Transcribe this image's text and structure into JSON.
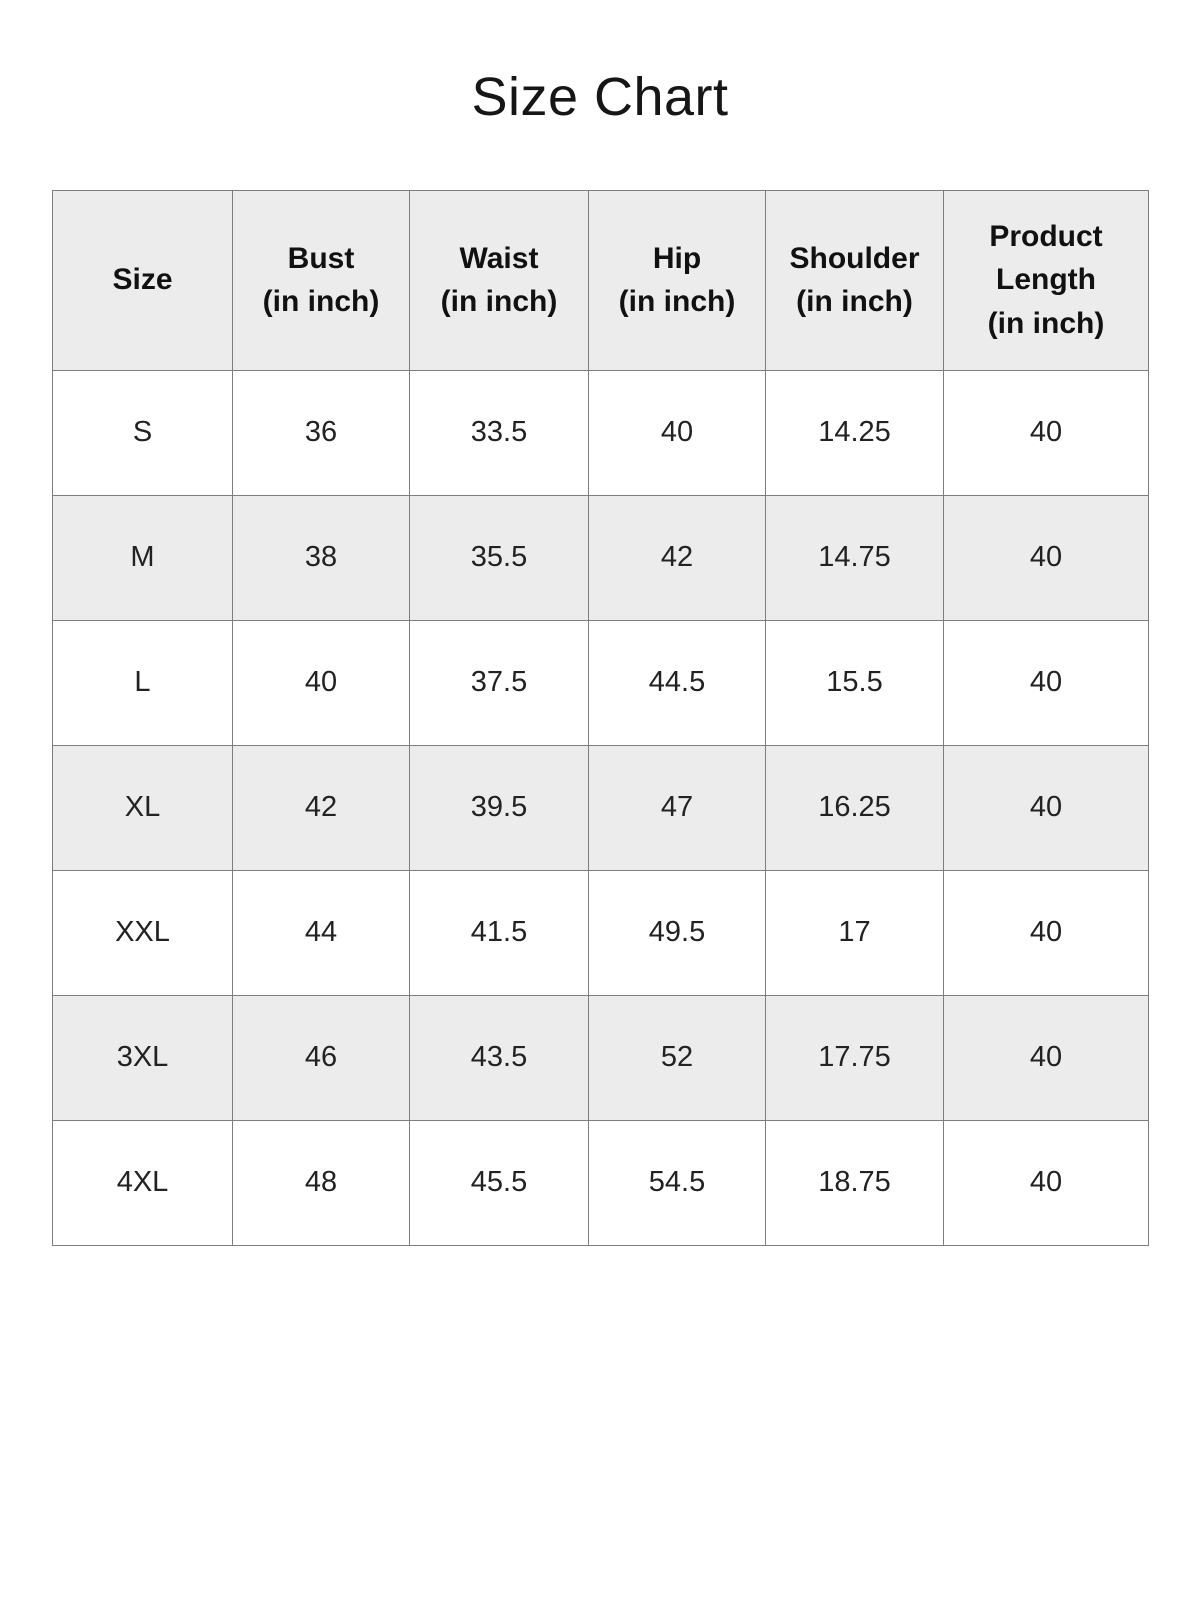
{
  "page": {
    "title": "Size Chart"
  },
  "colors": {
    "header_bg": "#ececec",
    "row_alt_bg": "#ececec",
    "border": "#7d7d7d",
    "text": "#1a1a1a"
  },
  "table": {
    "headers": [
      "Size",
      "Bust\n(in inch)",
      "Waist\n(in inch)",
      "Hip\n(in inch)",
      "Shoulder\n(in inch)",
      "Product\nLength\n(in inch)"
    ]
  },
  "chart_data": {
    "type": "table",
    "title": "Size Chart",
    "columns": [
      "Size",
      "Bust (in inch)",
      "Waist (in inch)",
      "Hip (in inch)",
      "Shoulder (in inch)",
      "Product Length (in inch)"
    ],
    "rows": [
      [
        "S",
        "36",
        "33.5",
        "40",
        "14.25",
        "40"
      ],
      [
        "M",
        "38",
        "35.5",
        "42",
        "14.75",
        "40"
      ],
      [
        "L",
        "40",
        "37.5",
        "44.5",
        "15.5",
        "40"
      ],
      [
        "XL",
        "42",
        "39.5",
        "47",
        "16.25",
        "40"
      ],
      [
        "XXL",
        "44",
        "41.5",
        "49.5",
        "17",
        "40"
      ],
      [
        "3XL",
        "46",
        "43.5",
        "52",
        "17.75",
        "40"
      ],
      [
        "4XL",
        "48",
        "45.5",
        "54.5",
        "18.75",
        "40"
      ]
    ]
  }
}
